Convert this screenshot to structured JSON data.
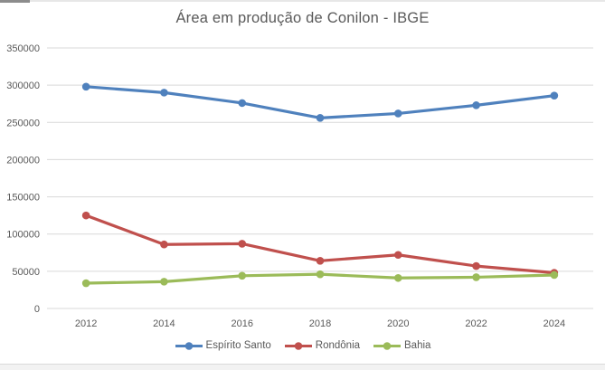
{
  "window": {
    "title": "Área em produção de Conilon - IBGE"
  },
  "chart_data": {
    "type": "line",
    "title": "Área em produção de Conilon - IBGE",
    "categories": [
      "2012",
      "2014",
      "2016",
      "2018",
      "2020",
      "2022",
      "2024"
    ],
    "series": [
      {
        "name": "Espírito Santo",
        "color": "#4F81BD",
        "values": [
          298000,
          290000,
          276000,
          256000,
          262000,
          273000,
          286000
        ]
      },
      {
        "name": "Rondônia",
        "color": "#C0504D",
        "values": [
          125000,
          86000,
          87000,
          64000,
          72000,
          57000,
          48000
        ]
      },
      {
        "name": "Bahia",
        "color": "#9BBB59",
        "values": [
          34000,
          36000,
          44000,
          46000,
          41000,
          42000,
          45000
        ]
      }
    ],
    "xlabel": "",
    "ylabel": "",
    "ylim": [
      0,
      350000
    ],
    "yticks": [
      0,
      50000,
      100000,
      150000,
      200000,
      250000,
      300000,
      350000
    ],
    "grid": true,
    "legend_position": "bottom",
    "text_color": "#595959",
    "gridline_color": "#d9d9d9"
  }
}
